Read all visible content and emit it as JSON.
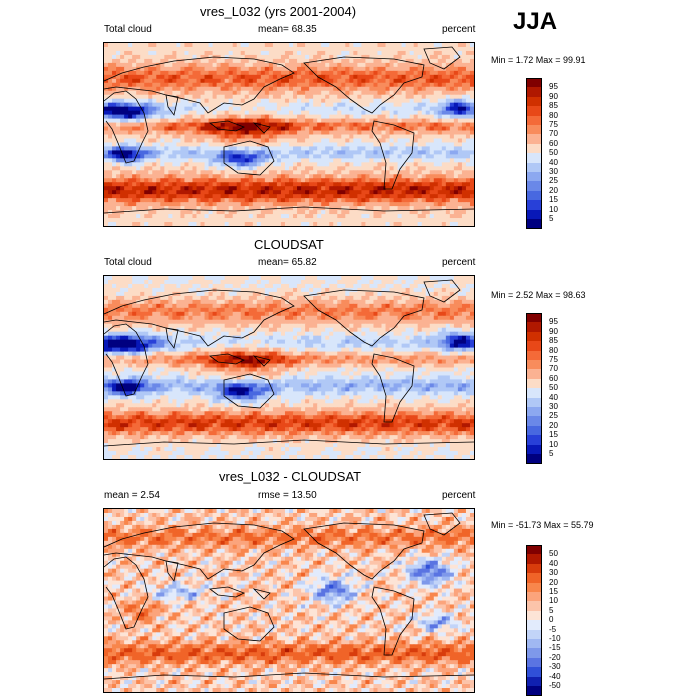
{
  "season": "JJA",
  "panels": [
    {
      "title": "vres_L032 (yrs 2001-2004)",
      "left_label": "Total cloud",
      "center_label": "mean=  68.35",
      "right_label": "percent",
      "minmax": "Min =   1.72 Max =  99.91",
      "colorbar_labels": [
        "95",
        "90",
        "85",
        "80",
        "75",
        "70",
        "60",
        "50",
        "40",
        "30",
        "25",
        "20",
        "15",
        "10",
        "5"
      ]
    },
    {
      "title": "CLOUDSAT",
      "left_label": "Total cloud",
      "center_label": "mean=  65.82",
      "right_label": "percent",
      "minmax": "Min =   2.52 Max =  98.63",
      "colorbar_labels": [
        "95",
        "90",
        "85",
        "80",
        "75",
        "70",
        "60",
        "50",
        "40",
        "30",
        "25",
        "20",
        "15",
        "10",
        "5"
      ]
    },
    {
      "title": "vres_L032 - CLOUDSAT",
      "left_label": "mean =   2.54",
      "center_label": "rmse =  13.50",
      "right_label": "percent",
      "minmax": "Min = -51.73 Max =  55.79",
      "colorbar_labels": [
        "50",
        "40",
        "30",
        "20",
        "15",
        "10",
        "5",
        "0",
        "-5",
        "-10",
        "-15",
        "-20",
        "-30",
        "-40",
        "-50"
      ]
    }
  ],
  "chart_data": [
    {
      "type": "heatmap",
      "title": "vres_L032 (yrs 2001-2004)",
      "variable": "Total cloud",
      "units": "percent",
      "mean": 68.35,
      "min": 1.72,
      "max": 99.91,
      "levels": [
        5,
        10,
        15,
        20,
        25,
        30,
        40,
        50,
        60,
        70,
        75,
        80,
        85,
        90,
        95
      ]
    },
    {
      "type": "heatmap",
      "title": "CLOUDSAT",
      "variable": "Total cloud",
      "units": "percent",
      "mean": 65.82,
      "min": 2.52,
      "max": 98.63,
      "levels": [
        5,
        10,
        15,
        20,
        25,
        30,
        40,
        50,
        60,
        70,
        75,
        80,
        85,
        90,
        95
      ]
    },
    {
      "type": "heatmap",
      "title": "vres_L032 - CLOUDSAT",
      "units": "percent",
      "mean": 2.54,
      "rmse": 13.5,
      "min": -51.73,
      "max": 55.79,
      "levels": [
        -50,
        -40,
        -30,
        -20,
        -15,
        -10,
        -5,
        0,
        5,
        10,
        15,
        20,
        30,
        40,
        50
      ]
    }
  ],
  "colors": {
    "abs_palette": [
      "#800000",
      "#b01800",
      "#d03000",
      "#e84818",
      "#f46a38",
      "#f88c5c",
      "#fbb292",
      "#fcdcc6",
      "#d8e6fb",
      "#b0c8f6",
      "#8ca8f0",
      "#6a88e8",
      "#4868e0",
      "#2840d8",
      "#0818b8",
      "#000080"
    ],
    "diff_palette": [
      "#800000",
      "#b01800",
      "#d83c0c",
      "#f06428",
      "#f8864c",
      "#fba47c",
      "#fcc4aa",
      "#fde4d6",
      "#e2ebfc",
      "#c2d4f8",
      "#a0b8f2",
      "#7e98ea",
      "#5a74e2",
      "#3050d8",
      "#1020b0",
      "#000080"
    ]
  }
}
